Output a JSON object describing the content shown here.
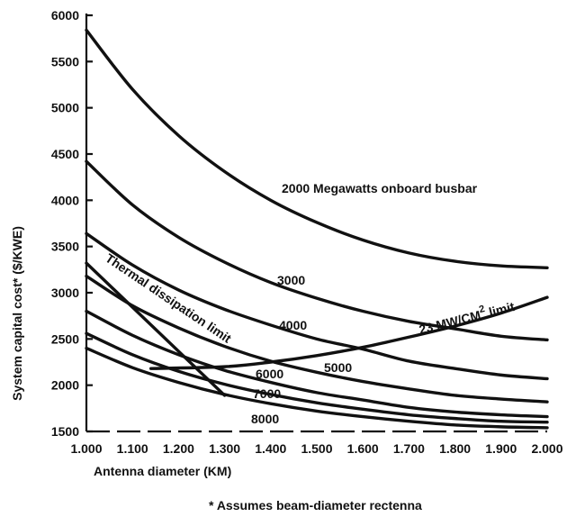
{
  "chart_data": {
    "type": "line",
    "xlabel": "Antenna diameter (KM)",
    "ylabel": "System capital cost* ($/KWE)",
    "xlim": [
      1.0,
      2.0
    ],
    "ylim": [
      1500,
      6000
    ],
    "x_ticks": [
      "1.000",
      "1.100",
      "1.200",
      "1.300",
      "1.400",
      "1.500",
      "1.600",
      "1.700",
      "1.800",
      "1.900",
      "2.000"
    ],
    "y_ticks": [
      "1500",
      "2000",
      "2500",
      "3000",
      "3500",
      "4000",
      "4500",
      "5000",
      "5500",
      "6000"
    ],
    "footnote": "* Assumes beam-diameter rectenna",
    "series": [
      {
        "name": "2000 Megawatts onboard busbar",
        "label": "2000 Megawatts onboard busbar",
        "x": [
          1.0,
          1.1,
          1.2,
          1.3,
          1.4,
          1.5,
          1.6,
          1.7,
          1.8,
          1.9,
          2.0
        ],
        "y": [
          5840,
          5200,
          4700,
          4310,
          4000,
          3760,
          3570,
          3430,
          3340,
          3290,
          3270
        ]
      },
      {
        "name": "3000",
        "label": "3000",
        "x": [
          1.0,
          1.1,
          1.2,
          1.3,
          1.4,
          1.5,
          1.6,
          1.7,
          1.8,
          1.9,
          2.0
        ],
        "y": [
          4420,
          3950,
          3600,
          3330,
          3110,
          2940,
          2800,
          2690,
          2610,
          2530,
          2490
        ]
      },
      {
        "name": "4000",
        "label": "4000",
        "x": [
          1.0,
          1.1,
          1.2,
          1.3,
          1.4,
          1.5,
          1.6,
          1.7,
          1.8,
          1.9,
          2.0
        ],
        "y": [
          3640,
          3300,
          3030,
          2820,
          2650,
          2500,
          2390,
          2260,
          2180,
          2110,
          2070
        ]
      },
      {
        "name": "5000",
        "label": "5000",
        "x": [
          1.0,
          1.1,
          1.2,
          1.3,
          1.4,
          1.5,
          1.6,
          1.7,
          1.8,
          1.9,
          2.0
        ],
        "y": [
          3180,
          2860,
          2620,
          2420,
          2260,
          2140,
          2040,
          1960,
          1890,
          1850,
          1820
        ]
      },
      {
        "name": "6000",
        "label": "6000",
        "x": [
          1.0,
          1.1,
          1.2,
          1.3,
          1.4,
          1.5,
          1.6,
          1.7,
          1.8,
          1.9,
          2.0
        ],
        "y": [
          2800,
          2540,
          2330,
          2160,
          2030,
          1920,
          1840,
          1760,
          1710,
          1680,
          1660
        ]
      },
      {
        "name": "7000",
        "label": "7000",
        "x": [
          1.0,
          1.1,
          1.2,
          1.3,
          1.4,
          1.5,
          1.6,
          1.7,
          1.8,
          1.9,
          2.0
        ],
        "y": [
          2560,
          2330,
          2150,
          2010,
          1900,
          1810,
          1740,
          1680,
          1640,
          1610,
          1600
        ]
      },
      {
        "name": "8000",
        "label": "8000",
        "x": [
          1.0,
          1.1,
          1.2,
          1.3,
          1.4,
          1.5,
          1.6,
          1.7,
          1.8,
          1.9,
          2.0
        ],
        "y": [
          2400,
          2190,
          2030,
          1900,
          1800,
          1720,
          1660,
          1610,
          1570,
          1550,
          1540
        ]
      }
    ],
    "limits": [
      {
        "name": "Thermal dissipation limit",
        "label": "Thermal dissipation limit",
        "x": [
          1.0,
          1.3
        ],
        "y": [
          3320,
          1890
        ]
      },
      {
        "name": "23 MW/CM2 limit",
        "label": "23 MW/CM",
        "superscript": "2",
        "suffix": " limit",
        "x": [
          1.14,
          1.3,
          1.4,
          1.5,
          1.6,
          1.7,
          1.8,
          1.9,
          2.0
        ],
        "y": [
          2180,
          2200,
          2250,
          2320,
          2410,
          2520,
          2640,
          2780,
          2950
        ]
      }
    ]
  }
}
